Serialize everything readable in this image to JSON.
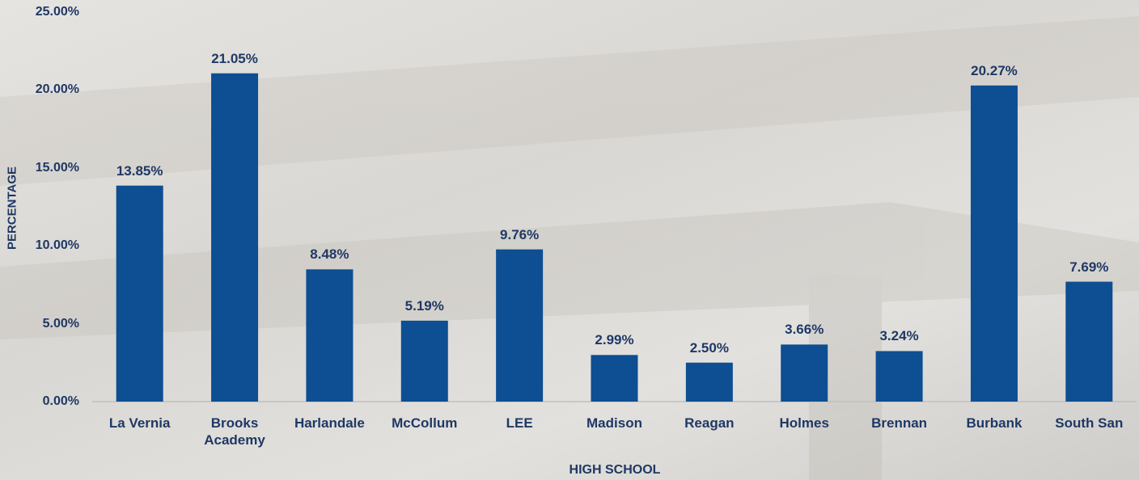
{
  "chart_data": {
    "type": "bar",
    "x_label": "HIGH SCHOOL",
    "y_label": "PERCENTAGE",
    "categories": [
      "La Vernia",
      "Brooks Academy",
      "Harlandale",
      "McCollum",
      "LEE",
      "Madison",
      "Reagan",
      "Holmes",
      "Brennan",
      "Burbank",
      "South San"
    ],
    "values": [
      13.85,
      21.05,
      8.48,
      5.19,
      9.76,
      2.99,
      2.5,
      3.66,
      3.24,
      20.27,
      7.69
    ],
    "value_labels": [
      "13.85%",
      "21.05%",
      "8.48%",
      "5.19%",
      "9.76%",
      "2.99%",
      "2.50%",
      "3.66%",
      "3.24%",
      "20.27%",
      "7.69%"
    ],
    "color": "#0e4e92",
    "ylim": [
      0,
      25
    ],
    "yticks": [
      {
        "value": 0,
        "label": "0.00%"
      },
      {
        "value": 5,
        "label": "5.00%"
      },
      {
        "value": 10,
        "label": "10.00%"
      },
      {
        "value": 15,
        "label": "15.00%"
      },
      {
        "value": 20,
        "label": "20.00%"
      },
      {
        "value": 25,
        "label": "25.00%"
      }
    ],
    "grid": false
  }
}
